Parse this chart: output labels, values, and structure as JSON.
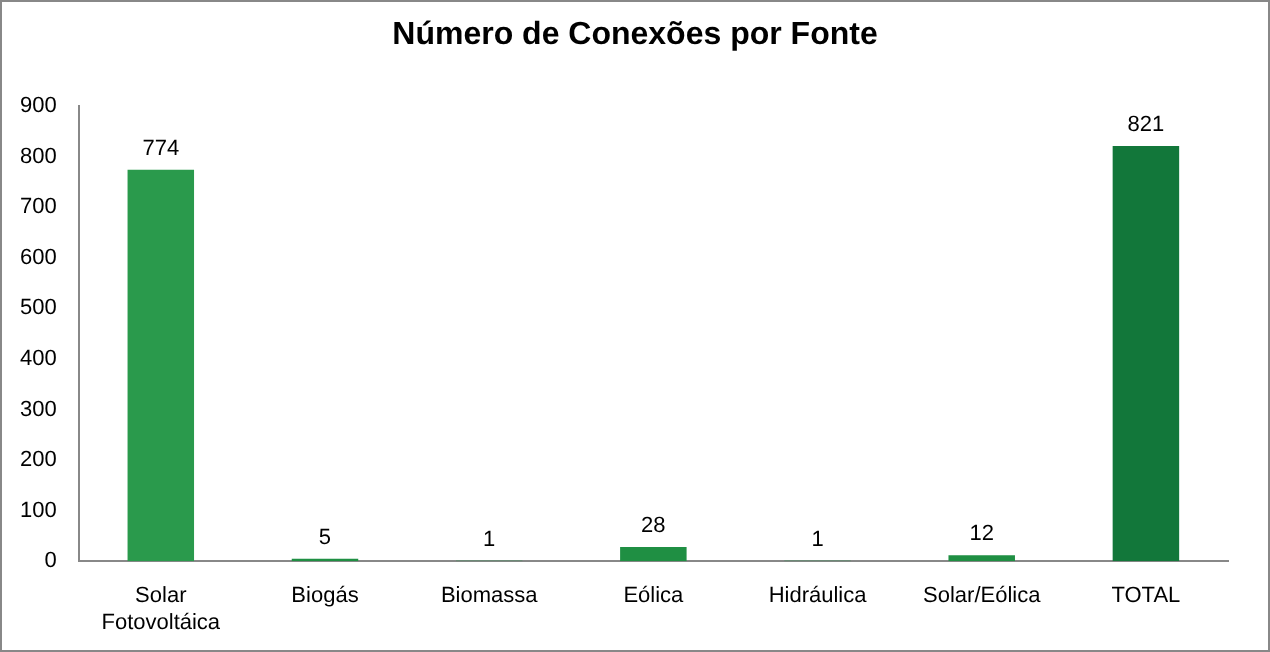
{
  "chart_data": {
    "type": "bar",
    "title": "Número de Conexões por Fonte",
    "categories": [
      "Solar\nFotovoltáica",
      "Biogás",
      "Biomassa",
      "Eólica",
      "Hidráulica",
      "Solar/Eólica",
      "TOTAL"
    ],
    "values": [
      774,
      5,
      1,
      28,
      1,
      12,
      821
    ],
    "colors": [
      "#2a9a4c",
      "#1f8f43",
      "#1f8f43",
      "#1f8f43",
      "#1f8f43",
      "#1f8f43",
      "#12773a"
    ],
    "ylim": [
      0,
      900
    ],
    "yticks": [
      0,
      100,
      200,
      300,
      400,
      500,
      600,
      700,
      800,
      900
    ],
    "grid": false,
    "data_labels": true
  }
}
